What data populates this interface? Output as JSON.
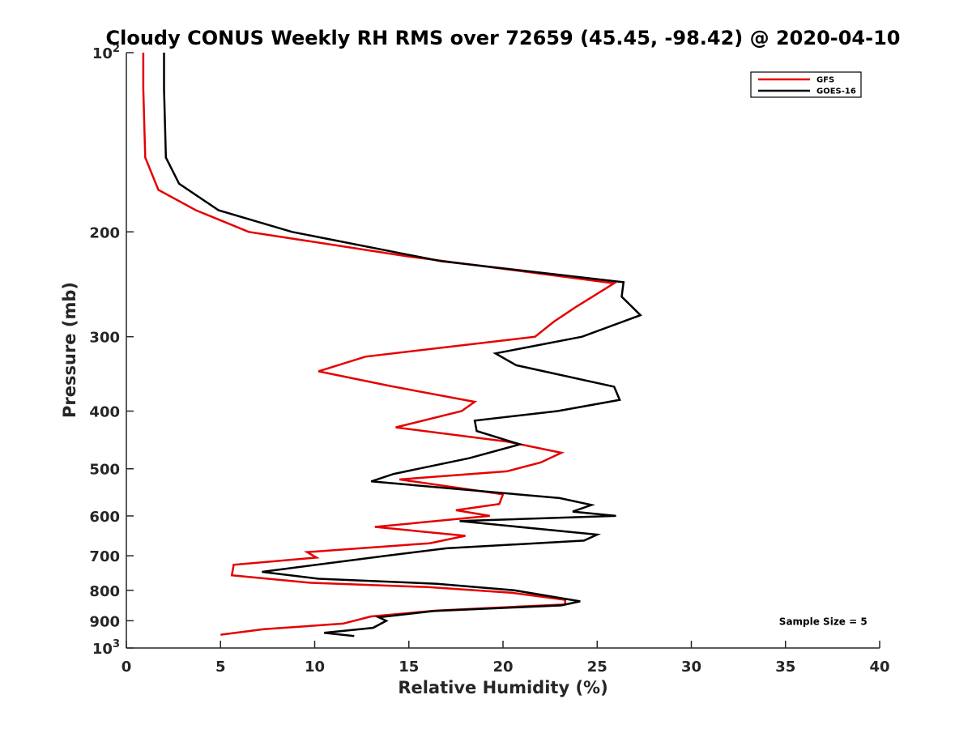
{
  "chart_data": {
    "type": "line",
    "title": "Cloudy CONUS Weekly RH RMS over 72659 (45.45, -98.42) @ 2020-04-10",
    "xlabel": "Relative Humidity (%)",
    "ylabel": "Pressure (mb)",
    "xlim": [
      0,
      40
    ],
    "ylim": [
      100,
      1000
    ],
    "y_scale": "log",
    "y_reversed": true,
    "grid": false,
    "legend_position": "top-right",
    "x_ticks": [
      "0",
      "5",
      "10",
      "15",
      "20",
      "25",
      "30",
      "35",
      "40"
    ],
    "y_ticks": [
      {
        "value": 100,
        "base": "10",
        "sup": "2"
      },
      {
        "value": 200,
        "base": "200",
        "sup": ""
      },
      {
        "value": 300,
        "base": "300",
        "sup": ""
      },
      {
        "value": 400,
        "base": "400",
        "sup": ""
      },
      {
        "value": 500,
        "base": "500",
        "sup": ""
      },
      {
        "value": 600,
        "base": "600",
        "sup": ""
      },
      {
        "value": 700,
        "base": "700",
        "sup": ""
      },
      {
        "value": 800,
        "base": "800",
        "sup": ""
      },
      {
        "value": 900,
        "base": "900",
        "sup": ""
      },
      {
        "value": 1000,
        "base": "10",
        "sup": "3"
      }
    ],
    "series": [
      {
        "name": "GFS",
        "color": "#e60000",
        "points": [
          [
            0.9,
            100
          ],
          [
            0.9,
            115
          ],
          [
            1.0,
            150
          ],
          [
            1.7,
            170
          ],
          [
            3.7,
            184
          ],
          [
            6.5,
            200
          ],
          [
            15.0,
            220
          ],
          [
            25.9,
            244
          ],
          [
            23.9,
            267
          ],
          [
            22.7,
            283
          ],
          [
            21.7,
            300
          ],
          [
            12.7,
            324
          ],
          [
            10.2,
            343
          ],
          [
            14.0,
            363
          ],
          [
            18.5,
            386
          ],
          [
            17.8,
            400
          ],
          [
            14.3,
            426
          ],
          [
            20.2,
            450
          ],
          [
            23.1,
            470
          ],
          [
            22.0,
            488
          ],
          [
            20.2,
            505
          ],
          [
            14.5,
            521
          ],
          [
            20.0,
            552
          ],
          [
            19.8,
            573
          ],
          [
            17.5,
            587
          ],
          [
            19.3,
            600
          ],
          [
            13.2,
            626
          ],
          [
            18.0,
            648
          ],
          [
            16.1,
            667
          ],
          [
            9.6,
            690
          ],
          [
            10.1,
            705
          ],
          [
            5.7,
            725
          ],
          [
            5.6,
            755
          ],
          [
            9.8,
            777
          ],
          [
            16.0,
            790
          ],
          [
            20.5,
            808
          ],
          [
            23.3,
            830
          ],
          [
            23.3,
            845
          ],
          [
            16.5,
            865
          ],
          [
            13.0,
            885
          ],
          [
            11.5,
            910
          ],
          [
            7.3,
            930
          ],
          [
            5.0,
            950
          ]
        ]
      },
      {
        "name": "GOES-16",
        "color": "#000000",
        "points": [
          [
            2.0,
            100
          ],
          [
            2.0,
            115
          ],
          [
            2.1,
            150
          ],
          [
            2.8,
            166
          ],
          [
            4.9,
            184
          ],
          [
            8.8,
            200
          ],
          [
            16.7,
            224
          ],
          [
            26.4,
            243
          ],
          [
            26.3,
            257
          ],
          [
            27.3,
            276
          ],
          [
            24.2,
            300
          ],
          [
            19.6,
            320
          ],
          [
            20.7,
            335
          ],
          [
            25.9,
            364
          ],
          [
            26.2,
            383
          ],
          [
            22.9,
            400
          ],
          [
            18.5,
            415
          ],
          [
            18.6,
            432
          ],
          [
            20.9,
            455
          ],
          [
            18.2,
            480
          ],
          [
            14.2,
            510
          ],
          [
            13.0,
            525
          ],
          [
            23.0,
            560
          ],
          [
            24.7,
            575
          ],
          [
            23.7,
            590
          ],
          [
            26.0,
            600
          ],
          [
            17.7,
            612
          ],
          [
            25.0,
            645
          ],
          [
            24.3,
            660
          ],
          [
            17.0,
            680
          ],
          [
            13.8,
            700
          ],
          [
            7.2,
            745
          ],
          [
            10.2,
            765
          ],
          [
            16.5,
            780
          ],
          [
            20.6,
            800
          ],
          [
            24.1,
            835
          ],
          [
            23.1,
            848
          ],
          [
            16.3,
            867
          ],
          [
            13.4,
            888
          ],
          [
            13.8,
            900
          ],
          [
            13.1,
            925
          ],
          [
            10.5,
            943
          ],
          [
            12.1,
            955
          ]
        ]
      }
    ],
    "annotations": [
      {
        "text": "Sample Size = 5",
        "x_data": 37,
        "y_data": 900
      }
    ]
  }
}
